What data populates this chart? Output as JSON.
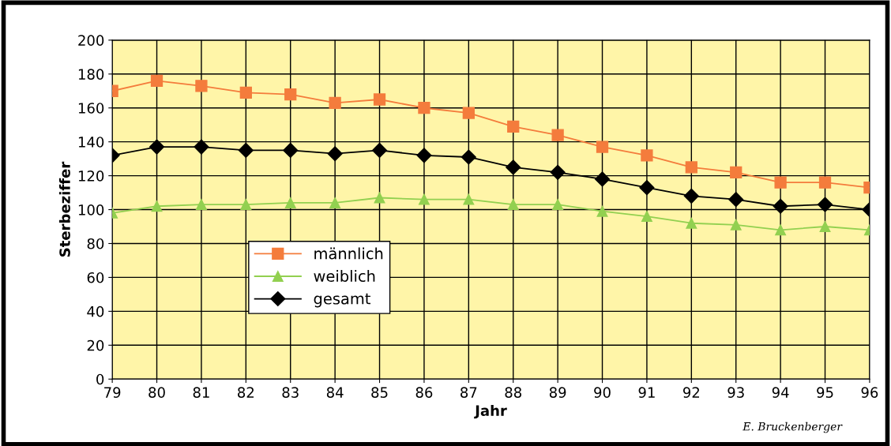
{
  "chart_data": {
    "type": "line",
    "xlabel": "Jahr",
    "ylabel": "Sterbeziffer",
    "categories": [
      "79",
      "80",
      "81",
      "82",
      "83",
      "84",
      "85",
      "86",
      "87",
      "88",
      "89",
      "90",
      "91",
      "92",
      "93",
      "94",
      "95",
      "96"
    ],
    "series": [
      {
        "name": "männlich",
        "color": "#f47c3c",
        "marker": "square",
        "values": [
          170,
          176,
          173,
          169,
          168,
          163,
          165,
          160,
          157,
          149,
          144,
          137,
          132,
          125,
          122,
          116,
          116,
          113
        ]
      },
      {
        "name": "weiblich",
        "color": "#92d050",
        "marker": "triangle",
        "values": [
          98,
          102,
          103,
          103,
          104,
          104,
          107,
          106,
          106,
          103,
          103,
          99,
          96,
          92,
          91,
          88,
          90,
          88
        ]
      },
      {
        "name": "gesamt",
        "color": "#000000",
        "marker": "diamond",
        "values": [
          132,
          137,
          137,
          135,
          135,
          133,
          135,
          132,
          131,
          125,
          122,
          118,
          113,
          108,
          106,
          102,
          103,
          100
        ]
      }
    ],
    "ylim": [
      0,
      200
    ],
    "yticks": [
      0,
      20,
      40,
      60,
      80,
      100,
      120,
      140,
      160,
      180,
      200
    ],
    "grid": true,
    "legend": "center left",
    "annotations": [
      "E. Bruckenberger"
    ]
  }
}
